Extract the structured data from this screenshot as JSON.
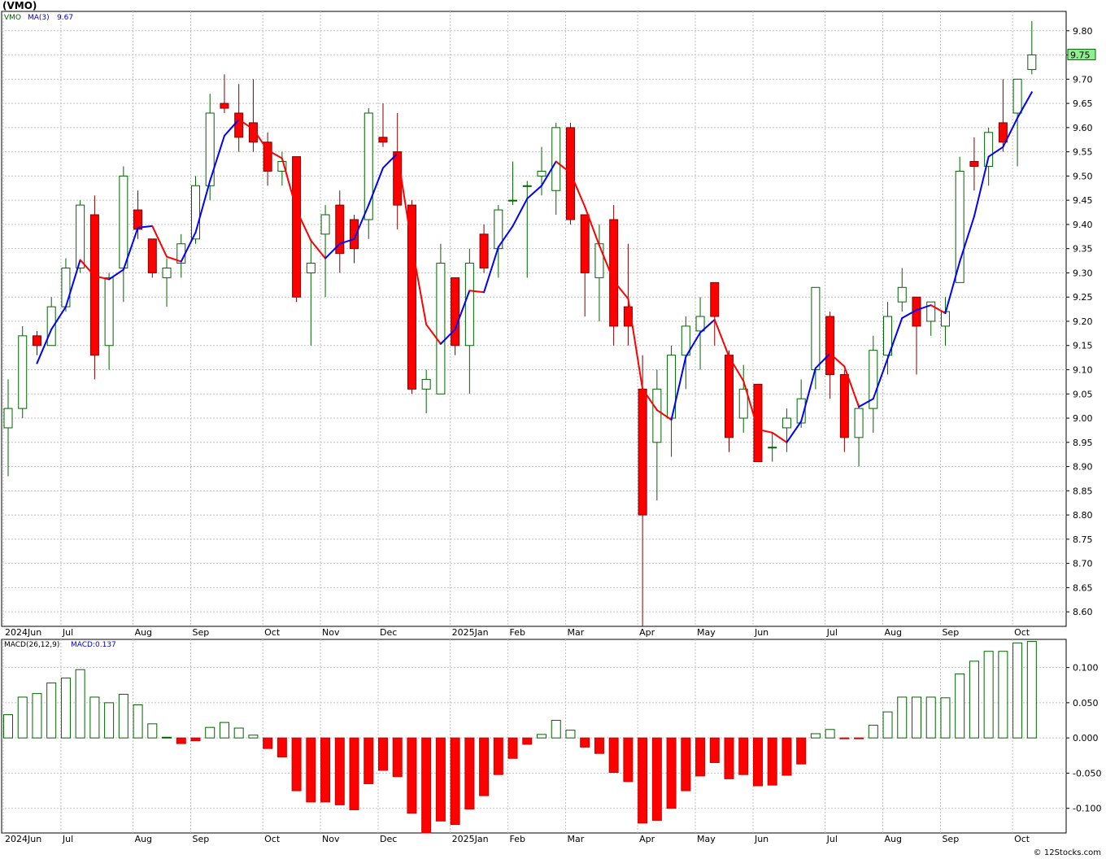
{
  "chart_title": "(VMO)",
  "credit": "© 12Stocks.com",
  "colors": {
    "up": "#006400",
    "down": "#ff0000",
    "ma_up": "#0000ff",
    "ma_down": "#ff0000",
    "grid": "#c0c0c0",
    "price_label_bg": "#90ee90"
  },
  "chart_data": [
    {
      "type": "candlestick",
      "symbol": "VMO",
      "legend": {
        "symbol_label": "VMO",
        "ma_label": "MA(3)",
        "ma_value": "9.67"
      },
      "last_price": "9.75",
      "ylim": [
        8.57,
        9.84
      ],
      "yticks": [
        "9.80",
        "9.75",
        "9.70",
        "9.65",
        "9.60",
        "9.55",
        "9.50",
        "9.45",
        "9.40",
        "9.35",
        "9.30",
        "9.25",
        "9.20",
        "9.15",
        "9.10",
        "9.05",
        "9.00",
        "8.95",
        "8.90",
        "8.85",
        "8.80",
        "8.75",
        "8.70",
        "8.65",
        "8.60"
      ],
      "xticks": [
        {
          "label": "2024Jun",
          "week": 0
        },
        {
          "label": "Jul",
          "week": 4
        },
        {
          "label": "Aug",
          "week": 9
        },
        {
          "label": "Sep",
          "week": 13
        },
        {
          "label": "Oct",
          "week": 18
        },
        {
          "label": "Nov",
          "week": 22
        },
        {
          "label": "Dec",
          "week": 26
        },
        {
          "label": "2025Jan",
          "week": 31
        },
        {
          "label": "Feb",
          "week": 35
        },
        {
          "label": "Mar",
          "week": 39
        },
        {
          "label": "Apr",
          "week": 44
        },
        {
          "label": "May",
          "week": 48
        },
        {
          "label": "Jun",
          "week": 52
        },
        {
          "label": "Jul",
          "week": 57
        },
        {
          "label": "Aug",
          "week": 61
        },
        {
          "label": "Sep",
          "week": 65
        },
        {
          "label": "Oct",
          "week": 70
        }
      ],
      "candles": [
        [
          8.98,
          9.08,
          8.88,
          9.02
        ],
        [
          9.02,
          9.19,
          9.0,
          9.17
        ],
        [
          9.17,
          9.18,
          9.13,
          9.15
        ],
        [
          9.15,
          9.25,
          9.15,
          9.23
        ],
        [
          9.23,
          9.33,
          9.22,
          9.31
        ],
        [
          9.31,
          9.45,
          9.3,
          9.44
        ],
        [
          9.42,
          9.46,
          9.08,
          9.13
        ],
        [
          9.15,
          9.3,
          9.1,
          9.29
        ],
        [
          9.31,
          9.52,
          9.24,
          9.5
        ],
        [
          9.43,
          9.47,
          9.37,
          9.39
        ],
        [
          9.37,
          9.37,
          9.29,
          9.3
        ],
        [
          9.29,
          9.33,
          9.23,
          9.31
        ],
        [
          9.32,
          9.38,
          9.29,
          9.36
        ],
        [
          9.37,
          9.5,
          9.36,
          9.48
        ],
        [
          9.48,
          9.67,
          9.45,
          9.63
        ],
        [
          9.65,
          9.71,
          9.63,
          9.64
        ],
        [
          9.63,
          9.69,
          9.55,
          9.58
        ],
        [
          9.61,
          9.7,
          9.55,
          9.57
        ],
        [
          9.57,
          9.59,
          9.48,
          9.51
        ],
        [
          9.51,
          9.55,
          9.48,
          9.53
        ],
        [
          9.54,
          9.54,
          9.24,
          9.25
        ],
        [
          9.3,
          9.37,
          9.15,
          9.32
        ],
        [
          9.38,
          9.44,
          9.25,
          9.42
        ],
        [
          9.44,
          9.47,
          9.3,
          9.34
        ],
        [
          9.41,
          9.42,
          9.32,
          9.35
        ],
        [
          9.41,
          9.64,
          9.37,
          9.63
        ],
        [
          9.58,
          9.65,
          9.56,
          9.57
        ],
        [
          9.55,
          9.63,
          9.39,
          9.44
        ],
        [
          9.44,
          9.45,
          9.05,
          9.06
        ],
        [
          9.06,
          9.1,
          9.01,
          9.08
        ],
        [
          9.05,
          9.36,
          9.05,
          9.32
        ],
        [
          9.29,
          9.29,
          9.13,
          9.15
        ],
        [
          9.15,
          9.35,
          9.05,
          9.32
        ],
        [
          9.38,
          9.4,
          9.3,
          9.31
        ],
        [
          9.35,
          9.44,
          9.29,
          9.43
        ],
        [
          9.45,
          9.53,
          9.44,
          9.45
        ],
        [
          9.48,
          9.49,
          9.29,
          9.48
        ],
        [
          9.5,
          9.56,
          9.46,
          9.51
        ],
        [
          9.47,
          9.61,
          9.42,
          9.6
        ],
        [
          9.6,
          9.61,
          9.4,
          9.41
        ],
        [
          9.42,
          9.42,
          9.21,
          9.3
        ],
        [
          9.29,
          9.4,
          9.2,
          9.36
        ],
        [
          9.41,
          9.44,
          9.15,
          9.19
        ],
        [
          9.23,
          9.36,
          9.15,
          9.19
        ],
        [
          9.06,
          9.13,
          8.57,
          8.8
        ],
        [
          8.95,
          9.1,
          8.83,
          9.06
        ],
        [
          9.0,
          9.15,
          8.92,
          9.13
        ],
        [
          9.13,
          9.21,
          9.06,
          9.19
        ],
        [
          9.18,
          9.25,
          9.1,
          9.21
        ],
        [
          9.28,
          9.28,
          9.15,
          9.21
        ],
        [
          9.13,
          9.14,
          8.93,
          8.96
        ],
        [
          9.0,
          9.11,
          8.97,
          9.06
        ],
        [
          9.07,
          9.07,
          8.91,
          8.91
        ],
        [
          8.94,
          8.97,
          8.91,
          8.94
        ],
        [
          8.98,
          9.02,
          8.93,
          9.0
        ],
        [
          8.99,
          9.08,
          8.98,
          9.04
        ],
        [
          9.1,
          9.27,
          9.06,
          9.27
        ],
        [
          9.21,
          9.22,
          9.04,
          9.09
        ],
        [
          9.09,
          9.1,
          8.93,
          8.96
        ],
        [
          8.96,
          9.03,
          8.9,
          9.02
        ],
        [
          9.02,
          9.17,
          8.97,
          9.14
        ],
        [
          9.13,
          9.24,
          9.09,
          9.21
        ],
        [
          9.24,
          9.31,
          9.22,
          9.27
        ],
        [
          9.25,
          9.25,
          9.09,
          9.19
        ],
        [
          9.2,
          9.24,
          9.17,
          9.24
        ],
        [
          9.19,
          9.25,
          9.15,
          9.22
        ],
        [
          9.28,
          9.54,
          9.28,
          9.51
        ],
        [
          9.53,
          9.58,
          9.47,
          9.52
        ],
        [
          9.52,
          9.6,
          9.48,
          9.59
        ],
        [
          9.61,
          9.7,
          9.55,
          9.57
        ],
        [
          9.63,
          9.7,
          9.52,
          9.7
        ],
        [
          9.72,
          9.82,
          9.71,
          9.75
        ]
      ]
    },
    {
      "type": "bar",
      "label_name": "MACD(26,12,9)",
      "label_value": "MACD:0.137",
      "ylim": [
        -0.135,
        0.14
      ],
      "yticks": [
        "0.100",
        "0.050",
        "0.000",
        "-0.050",
        "-0.100"
      ],
      "values": [
        0.033,
        0.058,
        0.063,
        0.078,
        0.085,
        0.097,
        0.058,
        0.05,
        0.062,
        0.047,
        0.02,
        0.001,
        -0.008,
        -0.004,
        0.015,
        0.022,
        0.014,
        0.004,
        -0.015,
        -0.027,
        -0.075,
        -0.091,
        -0.091,
        -0.095,
        -0.102,
        -0.065,
        -0.046,
        -0.055,
        -0.107,
        -0.135,
        -0.118,
        -0.123,
        -0.101,
        -0.082,
        -0.052,
        -0.029,
        -0.009,
        0.005,
        0.025,
        0.011,
        -0.013,
        -0.022,
        -0.049,
        -0.062,
        -0.121,
        -0.117,
        -0.1,
        -0.075,
        -0.054,
        -0.035,
        -0.058,
        -0.052,
        -0.068,
        -0.067,
        -0.053,
        -0.037,
        0.006,
        0.012,
        -0.001,
        -0.001,
        0.018,
        0.037,
        0.058,
        0.058,
        0.058,
        0.057,
        0.091,
        0.109,
        0.123,
        0.123,
        0.135,
        0.137
      ]
    }
  ]
}
